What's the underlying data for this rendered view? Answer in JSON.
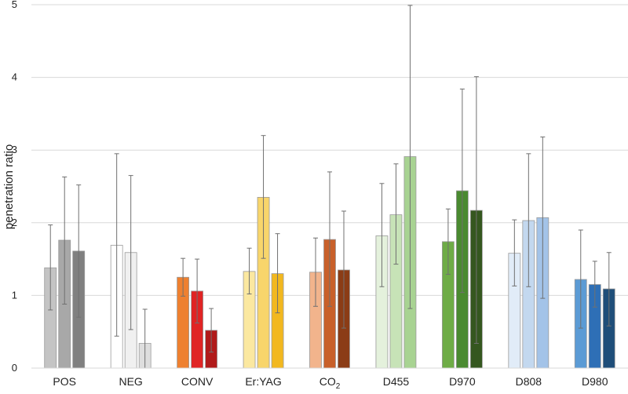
{
  "chart_data": {
    "type": "bar",
    "ylabel": "penetration ratio",
    "ylim": [
      0,
      5
    ],
    "yticks": [
      "0",
      "1",
      "2",
      "3",
      "4",
      "5"
    ],
    "grid": true,
    "groups": [
      {
        "label": "POS",
        "label_main": "POS",
        "label_sub": "",
        "bars": [
          {
            "value": 1.38,
            "err_low": 0.8,
            "err_high": 1.97,
            "color": "#c4c4c4"
          },
          {
            "value": 1.76,
            "err_low": 0.88,
            "err_high": 2.63,
            "color": "#a8a8a8"
          },
          {
            "value": 1.61,
            "err_low": 0.7,
            "err_high": 2.52,
            "color": "#808080"
          }
        ]
      },
      {
        "label": "NEG",
        "label_main": "NEG",
        "label_sub": "",
        "bars": [
          {
            "value": 1.69,
            "err_low": 0.44,
            "err_high": 2.95,
            "color": "#ffffff"
          },
          {
            "value": 1.59,
            "err_low": 0.53,
            "err_high": 2.65,
            "color": "#f0f0f0"
          },
          {
            "value": 0.34,
            "err_low": 0.0,
            "err_high": 0.81,
            "color": "#dedede"
          }
        ]
      },
      {
        "label": "CONV",
        "label_main": "CONV",
        "label_sub": "",
        "bars": [
          {
            "value": 1.25,
            "err_low": 0.99,
            "err_high": 1.51,
            "color": "#ee8030"
          },
          {
            "value": 1.06,
            "err_low": 0.62,
            "err_high": 1.5,
            "color": "#e02424"
          },
          {
            "value": 0.52,
            "err_low": 0.22,
            "err_high": 0.82,
            "color": "#b11a1a"
          }
        ]
      },
      {
        "label": "Er:YAG",
        "label_main": "Er:YAG",
        "label_sub": "",
        "bars": [
          {
            "value": 1.33,
            "err_low": 1.02,
            "err_high": 1.65,
            "color": "#fbe8a0"
          },
          {
            "value": 2.35,
            "err_low": 1.51,
            "err_high": 3.2,
            "color": "#f8d56b"
          },
          {
            "value": 1.3,
            "err_low": 0.76,
            "err_high": 1.85,
            "color": "#f2b81f"
          }
        ]
      },
      {
        "label": "CO2",
        "label_main": "CO",
        "label_sub": "2",
        "bars": [
          {
            "value": 1.32,
            "err_low": 0.85,
            "err_high": 1.79,
            "color": "#f2b48c"
          },
          {
            "value": 1.77,
            "err_low": 0.85,
            "err_high": 2.7,
            "color": "#c8602a"
          },
          {
            "value": 1.35,
            "err_low": 0.55,
            "err_high": 2.16,
            "color": "#8b3c16"
          }
        ]
      },
      {
        "label": "D455",
        "label_main": "D455",
        "label_sub": "",
        "bars": [
          {
            "value": 1.82,
            "err_low": 1.12,
            "err_high": 2.54,
            "color": "#e4f1dc"
          },
          {
            "value": 2.11,
            "err_low": 1.43,
            "err_high": 2.81,
            "color": "#c7e3b7"
          },
          {
            "value": 2.91,
            "err_low": 0.82,
            "err_high": 4.99,
            "color": "#a8d392"
          }
        ]
      },
      {
        "label": "D970",
        "label_main": "D970",
        "label_sub": "",
        "bars": [
          {
            "value": 1.74,
            "err_low": 1.29,
            "err_high": 2.19,
            "color": "#6eac46"
          },
          {
            "value": 2.44,
            "err_low": 1.04,
            "err_high": 3.84,
            "color": "#4a8a30"
          },
          {
            "value": 2.17,
            "err_low": 0.34,
            "err_high": 4.01,
            "color": "#35571f"
          }
        ]
      },
      {
        "label": "D808",
        "label_main": "D808",
        "label_sub": "",
        "bars": [
          {
            "value": 1.58,
            "err_low": 1.13,
            "err_high": 2.04,
            "color": "#e1ecf8"
          },
          {
            "value": 2.03,
            "err_low": 1.12,
            "err_high": 2.95,
            "color": "#c3d8ef"
          },
          {
            "value": 2.07,
            "err_low": 0.96,
            "err_high": 3.18,
            "color": "#a3c3e8"
          }
        ]
      },
      {
        "label": "D980",
        "label_main": "D980",
        "label_sub": "",
        "bars": [
          {
            "value": 1.22,
            "err_low": 0.55,
            "err_high": 1.9,
            "color": "#5b9bd5"
          },
          {
            "value": 1.15,
            "err_low": 0.84,
            "err_high": 1.47,
            "color": "#2e6fb6"
          },
          {
            "value": 1.09,
            "err_low": 0.58,
            "err_high": 1.59,
            "color": "#1f4e79"
          }
        ]
      }
    ]
  }
}
